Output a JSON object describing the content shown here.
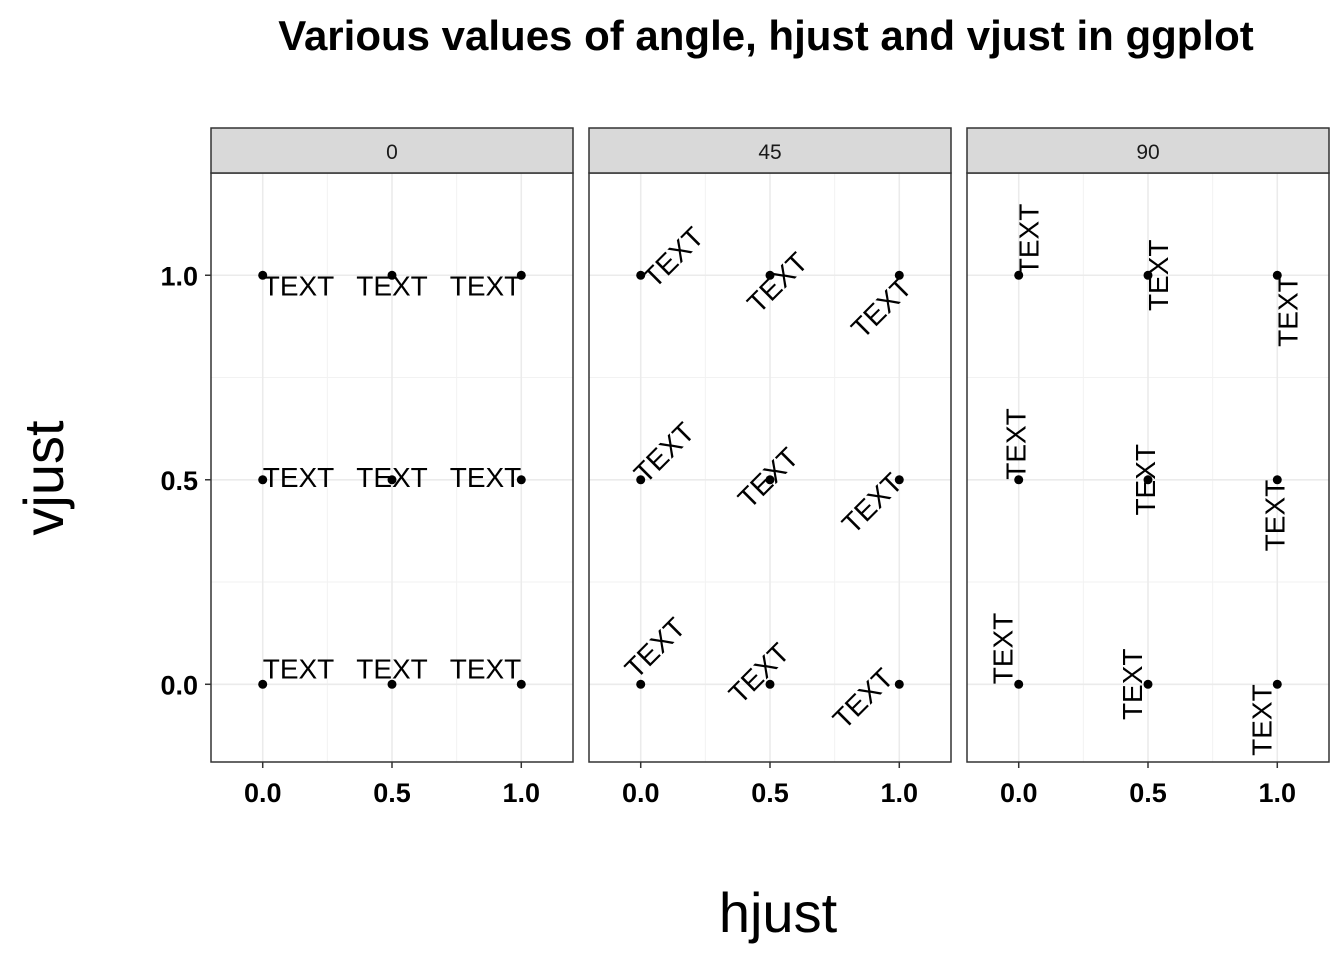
{
  "chart_data": {
    "type": "scatter",
    "title": "Various values of angle, hjust and vjust in ggplot",
    "xlabel": "hjust",
    "ylabel": "vjust",
    "facet_variable": "angle",
    "facets": [
      "0",
      "45",
      "90"
    ],
    "xlim": [
      -0.2,
      1.2
    ],
    "ylim": [
      -0.19,
      1.25
    ],
    "x_ticks": [
      0.0,
      0.5,
      1.0
    ],
    "x_tick_labels": [
      "0.0",
      "0.5",
      "1.0"
    ],
    "y_ticks": [
      0.0,
      0.5,
      1.0
    ],
    "y_tick_labels": [
      "0.0",
      "0.5",
      "1.0"
    ],
    "point_label": "TEXT",
    "hjust_values": [
      0.0,
      0.5,
      1.0
    ],
    "vjust_values": [
      0.0,
      0.5,
      1.0
    ],
    "grid": true,
    "legend": "none"
  }
}
